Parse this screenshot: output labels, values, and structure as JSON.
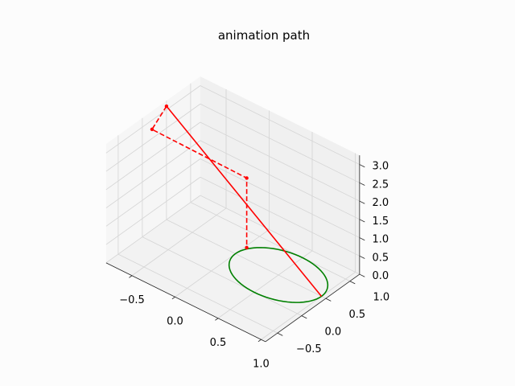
{
  "chart_data": {
    "type": "line",
    "projection": "3d",
    "title": "animation path",
    "xlabel": "",
    "ylabel": "",
    "zlabel": "",
    "xlim": [
      -0.8,
      1.05
    ],
    "ylim": [
      -0.75,
      1.2
    ],
    "zlim": [
      0,
      3.25
    ],
    "x_ticks": [
      "−0.5",
      "0.0",
      "0.5",
      "1.0"
    ],
    "y_ticks": [
      "−0.5",
      "0.0",
      "0.5",
      "1.0"
    ],
    "z_ticks": [
      "0.0",
      "0.5",
      "1.0",
      "1.5",
      "2.0",
      "2.5",
      "3.0"
    ],
    "grid": true,
    "series": [
      {
        "style": "solid",
        "color": "#008000",
        "shape": "circle",
        "center": [
          0.5,
          0.5,
          0
        ],
        "radius": 0.5,
        "z": 0
      },
      {
        "style": "solid",
        "color": "#ff0000",
        "x": [
          1.0,
          -0.8
        ],
        "y": [
          0.5,
          0.5
        ],
        "z": [
          0.0,
          3.1
        ]
      },
      {
        "style": "dashed",
        "color": "#ff0000",
        "x": [
          -0.8,
          -0.8,
          0.3,
          0.3
        ],
        "y": [
          0.5,
          0.2,
          0.2,
          0.2
        ],
        "z": [
          3.1,
          2.75,
          2.7,
          0.8
        ]
      }
    ]
  }
}
